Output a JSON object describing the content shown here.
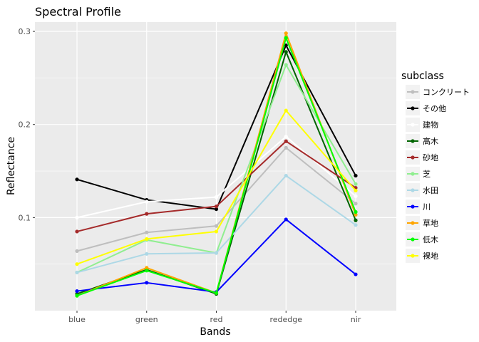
{
  "chart_data": {
    "type": "line",
    "title": "Spectral Profile",
    "xlabel": "Bands",
    "ylabel": "Reflectance",
    "categories": [
      "blue",
      "green",
      "red",
      "rededge",
      "nir"
    ],
    "yticks": [
      0.1,
      0.2,
      0.3
    ],
    "ytick_labels": [
      "0.1",
      "0.2",
      "0.3"
    ],
    "ylim": [
      0.0,
      0.31
    ],
    "grid": true,
    "legend": {
      "title": "subclass",
      "position": "right"
    },
    "series": [
      {
        "name": "コンクリート",
        "color": "#BEBEBE",
        "values": [
          0.064,
          0.084,
          0.091,
          0.175,
          0.115
        ]
      },
      {
        "name": "その他",
        "color": "#000000",
        "values": [
          0.141,
          0.119,
          0.109,
          0.285,
          0.145
        ]
      },
      {
        "name": "建物",
        "color": "#FFFFFF",
        "values": [
          0.1,
          0.117,
          0.122,
          0.187,
          0.123
        ]
      },
      {
        "name": "高木",
        "color": "#006400",
        "values": [
          0.018,
          0.044,
          0.018,
          0.278,
          0.097
        ]
      },
      {
        "name": "砂地",
        "color": "#A52A2A",
        "values": [
          0.085,
          0.104,
          0.112,
          0.182,
          0.132
        ]
      },
      {
        "name": "芝",
        "color": "#90EE90",
        "values": [
          0.041,
          0.076,
          0.062,
          0.264,
          0.136
        ]
      },
      {
        "name": "水田",
        "color": "#ADD8E6",
        "values": [
          0.041,
          0.061,
          0.062,
          0.145,
          0.092
        ]
      },
      {
        "name": "川",
        "color": "#0000FF",
        "values": [
          0.021,
          0.03,
          0.02,
          0.098,
          0.039
        ]
      },
      {
        "name": "草地",
        "color": "#FFA500",
        "values": [
          0.016,
          0.046,
          0.019,
          0.298,
          0.103
        ]
      },
      {
        "name": "低木",
        "color": "#00FF00",
        "values": [
          0.016,
          0.043,
          0.019,
          0.293,
          0.106
        ]
      },
      {
        "name": "裸地",
        "color": "#FFFF00",
        "values": [
          0.05,
          0.077,
          0.085,
          0.215,
          0.129
        ]
      }
    ]
  }
}
